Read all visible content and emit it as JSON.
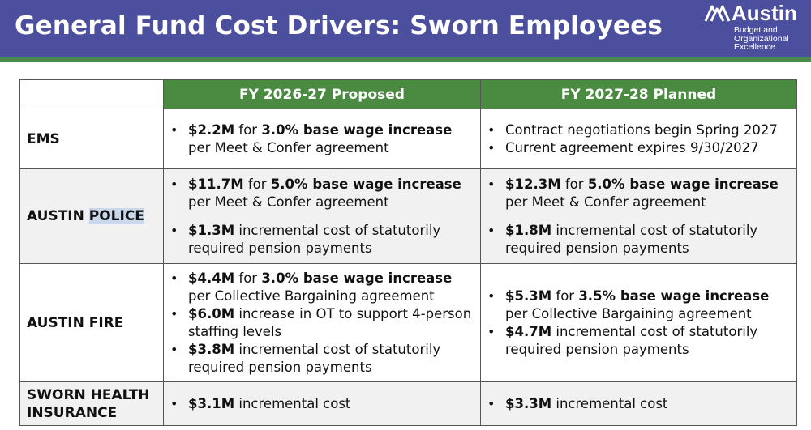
{
  "header": {
    "title": "General Fund Cost Drivers: Sworn Employees",
    "logo": {
      "name": "Austin",
      "sub_lines": [
        "Budget and",
        "Organizational",
        "Excellence"
      ]
    },
    "colors": {
      "banner": "#4b4f9e",
      "stripe": "#4a8a4c",
      "column_header": "#4b8a41"
    }
  },
  "table": {
    "columns": [
      "FY 2026-27 Proposed",
      "FY 2027-28 Planned"
    ],
    "rows": [
      {
        "label": "EMS",
        "fy2627": [
          {
            "b1": "$2.2M",
            "t1": " for ",
            "b2": "3.0% base wage increase",
            "t2": " per Meet & Confer agreement"
          }
        ],
        "fy2728": [
          {
            "t1": "Contract negotiations begin Spring 2027"
          },
          {
            "t1": "Current agreement expires 9/30/2027"
          }
        ]
      },
      {
        "label_pre": "AUSTIN ",
        "label_hl": "POLICE",
        "fy2627": [
          {
            "b1": "$11.7M",
            "t1": " for ",
            "b2": "5.0% base wage increase",
            "t2": " per Meet & Confer agreement"
          },
          {
            "b1": "$1.3M",
            "t1": " incremental cost of statutorily required pension payments"
          }
        ],
        "fy2728": [
          {
            "b1": "$12.3M",
            "t1": " for ",
            "b2": "5.0% base wage increase",
            "t2": " per Meet & Confer agreement"
          },
          {
            "b1": "$1.8M",
            "t1": " incremental cost of statutorily required pension payments"
          }
        ]
      },
      {
        "label": "AUSTIN FIRE",
        "fy2627": [
          {
            "b1": "$4.4M",
            "t1": " for ",
            "b2": "3.0% base wage increase",
            "t2": " per Collective Bargaining agreement"
          },
          {
            "b1": "$6.0M",
            "t1": " increase in OT to support 4-person staffing levels"
          },
          {
            "b1": "$3.8M",
            "t1": " incremental cost of statutorily required pension payments"
          }
        ],
        "fy2728": [
          {
            "b1": "$5.3M",
            "t1": " for ",
            "b2": "3.5% base wage increase",
            "t2": " per Collective Bargaining agreement"
          },
          {
            "b1": "$4.7M",
            "t1": " incremental cost of statutorily required pension payments"
          }
        ]
      },
      {
        "label_l1": "SWORN HEALTH",
        "label_l2": "INSURANCE",
        "fy2627": [
          {
            "b1": "$3.1M",
            "t1": " incremental cost"
          }
        ],
        "fy2728": [
          {
            "b1": "$3.3M",
            "t1": " incremental cost"
          }
        ]
      }
    ]
  }
}
